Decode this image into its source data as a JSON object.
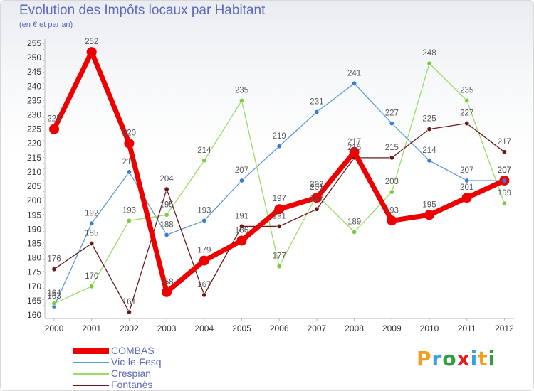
{
  "chart_data": {
    "type": "line",
    "title": "Evolution des Impôts locaux par Habitant",
    "subtitle": "(en € et par an)",
    "xlabel": "",
    "ylabel": "",
    "x": [
      "2000",
      "2001",
      "2002",
      "2003",
      "2004",
      "2005",
      "2006",
      "2007",
      "2008",
      "2009",
      "2010",
      "2011",
      "2012"
    ],
    "ylim": [
      160,
      255
    ],
    "yticks": [
      160,
      165,
      170,
      175,
      180,
      185,
      190,
      195,
      200,
      205,
      210,
      215,
      220,
      225,
      230,
      235,
      240,
      245,
      250,
      255
    ],
    "grid": false,
    "legend_position": "bottom-left",
    "series": [
      {
        "name": "COMBAS",
        "color": "#ee0000",
        "values": [
          225,
          252,
          220,
          168,
          179,
          186,
          197,
          201,
          217,
          193,
          195,
          201,
          207
        ]
      },
      {
        "name": "Vic-le-Fesq",
        "color": "#5b9bd5",
        "values": [
          163,
          192,
          210,
          188,
          193,
          207,
          219,
          231,
          241,
          227,
          214,
          207,
          207
        ]
      },
      {
        "name": "Crespian",
        "color": "#99dd66",
        "values": [
          164,
          170,
          193,
          195,
          214,
          235,
          177,
          202,
          189,
          203,
          248,
          235,
          199
        ]
      },
      {
        "name": "Fontanès",
        "color": "#6b1a1a",
        "values": [
          176,
          185,
          161,
          204,
          167,
          191,
          191,
          197,
          215,
          215,
          225,
          227,
          217
        ]
      }
    ]
  },
  "brand": {
    "text": "Proxiti",
    "letters": [
      "P",
      "r",
      "o",
      "x",
      "i",
      "t",
      "i"
    ],
    "colors": [
      "#f0a020",
      "#3aa0e0",
      "#2f9e3f",
      "#e02020",
      "#3aa0e0",
      "#f0a020",
      "#2f9e3f"
    ]
  }
}
